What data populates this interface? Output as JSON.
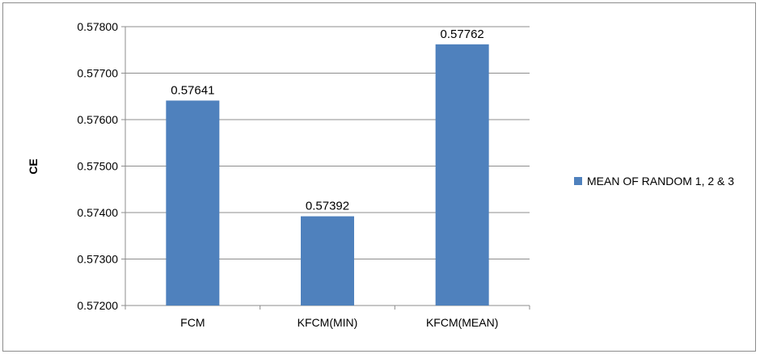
{
  "chart_data": {
    "type": "bar",
    "title": "",
    "xlabel": "",
    "ylabel": "CE",
    "categories": [
      "FCM",
      "KFCM(MIN)",
      "KFCM(MEAN)"
    ],
    "series": [
      {
        "name": "MEAN OF RANDOM 1, 2 & 3",
        "values": [
          0.57641,
          0.57392,
          0.57762
        ],
        "color": "#4f81bd"
      }
    ],
    "data_labels": [
      "0.57641",
      "0.57392",
      "0.57762"
    ],
    "ylim": [
      0.572,
      0.578
    ],
    "yticks": [
      0.572,
      0.573,
      0.574,
      0.575,
      0.576,
      0.577,
      0.578
    ],
    "ytick_labels": [
      "0.57200",
      "0.57300",
      "0.57400",
      "0.57500",
      "0.57600",
      "0.57700",
      "0.57800"
    ],
    "grid": true,
    "legend": "right"
  }
}
